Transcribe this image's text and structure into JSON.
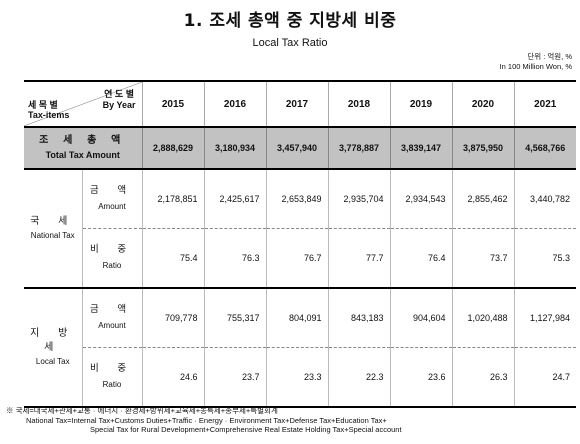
{
  "title": "1. 조세 총액 중 지방세 비중",
  "subtitle": "Local Tax Ratio",
  "unit": {
    "ko": "단위 : 억원, %",
    "en": "In 100 Million Won, %"
  },
  "header": {
    "year_ko": "연 도 별",
    "year_en": "By Year",
    "item_ko": "세 목 별",
    "item_en": "Tax-items",
    "years": [
      "2015",
      "2016",
      "2017",
      "2018",
      "2019",
      "2020",
      "2021"
    ]
  },
  "total": {
    "label_ko": "조 세 총 액",
    "label_en": "Total Tax Amount",
    "values": [
      "2,888,629",
      "3,180,934",
      "3,457,940",
      "3,778,887",
      "3,839,147",
      "3,875,950",
      "4,568,766"
    ]
  },
  "national": {
    "label_ko": "국 세",
    "label_en": "National Tax",
    "amount_ko": "금 액",
    "amount_en": "Amount",
    "amount_values": [
      "2,178,851",
      "2,425,617",
      "2,653,849",
      "2,935,704",
      "2,934,543",
      "2,855,462",
      "3,440,782"
    ],
    "ratio_ko": "비 중",
    "ratio_en": "Ratio",
    "ratio_values": [
      "75.4",
      "76.3",
      "76.7",
      "77.7",
      "76.4",
      "73.7",
      "75.3"
    ]
  },
  "local": {
    "label_ko": "지 방 세",
    "label_en": "Local Tax",
    "amount_ko": "금 액",
    "amount_en": "Amount",
    "amount_values": [
      "709,778",
      "755,317",
      "804,091",
      "843,183",
      "904,604",
      "1,020,488",
      "1,127,984"
    ],
    "ratio_ko": "비 중",
    "ratio_en": "Ratio",
    "ratio_values": [
      "24.6",
      "23.7",
      "23.3",
      "22.3",
      "23.6",
      "26.3",
      "24.7"
    ]
  },
  "note": {
    "line1": "※ 국세=내국세+관세+교통 · 에너지 · 환경세+방위세+교육세+농특세+종부세+특별회계",
    "line2": "National Tax=Internal Tax+Customs Duties+Traffic · Energy · Environment Tax+Defense Tax+Education Tax+",
    "line3": "Special Tax for Rural Development+Comprehensive Real Estate Holding Tax+Special account"
  }
}
